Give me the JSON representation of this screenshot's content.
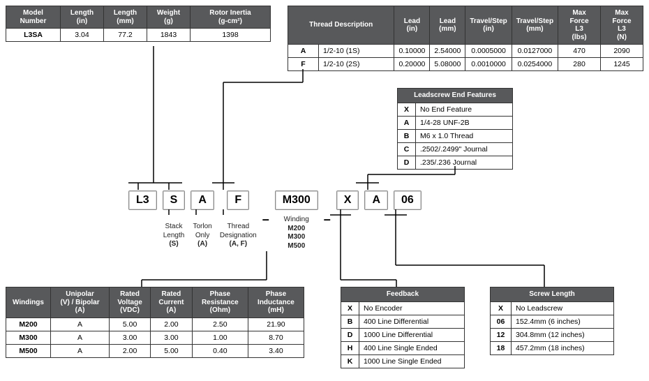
{
  "model_table": {
    "headers": [
      "Model\nNumber",
      "Length\n(in)",
      "Length\n(mm)",
      "Weight\n(g)",
      "Rotor Inertia\n(g-cm²)"
    ],
    "row": [
      "L3SA",
      "3.04",
      "77.2",
      "1843",
      "1398"
    ]
  },
  "thread_table": {
    "header_span": "Thread Description",
    "headers": [
      "Lead\n(in)",
      "Lead\n(mm)",
      "Travel/Step\n(in)",
      "Travel/Step\n(mm)",
      "Max Force\nL3\n(lbs)",
      "Max Force\nL3\n(N)"
    ],
    "rows": [
      {
        "key": "A",
        "desc": "1/2-10 (1S)",
        "v": [
          "0.10000",
          "2.54000",
          "0.0005000",
          "0.0127000",
          "470",
          "2090"
        ]
      },
      {
        "key": "F",
        "desc": "1/2-10 (2S)",
        "v": [
          "0.20000",
          "5.08000",
          "0.0010000",
          "0.0254000",
          "280",
          "1245"
        ]
      }
    ]
  },
  "leadscrew_end": {
    "title": "Leadscrew End Features",
    "rows": [
      [
        "X",
        "No End Feature"
      ],
      [
        "A",
        "1/4-28 UNF-2B"
      ],
      [
        "B",
        "M6 x 1.0 Thread"
      ],
      [
        "C",
        ".2502/.2499\" Journal"
      ],
      [
        "D",
        ".235/.236 Journal"
      ]
    ]
  },
  "part": {
    "segments": [
      "L3",
      "S",
      "A",
      "F",
      "M300",
      "X",
      "A",
      "06"
    ],
    "sub": [
      "",
      {
        "t": "Stack\nLength",
        "b": "(S)"
      },
      {
        "t": "Torlon\nOnly",
        "b": "(A)"
      },
      {
        "t": "Thread\nDesignation",
        "b": "(A, F)"
      },
      {
        "t": "Winding",
        "b": "M200\nM300\nM500"
      },
      "",
      "",
      ""
    ]
  },
  "windings_table": {
    "headers": [
      "Windings",
      "Unipolar\n(V) / Bipolar\n(A)",
      "Rated\nVoltage\n(VDC)",
      "Rated\nCurrent\n(A)",
      "Phase\nResistance\n(Ohm)",
      "Phase\nInductance\n(mH)"
    ],
    "rows": [
      [
        "M200",
        "A",
        "5.00",
        "2.00",
        "2.50",
        "21.90"
      ],
      [
        "M300",
        "A",
        "3.00",
        "3.00",
        "1.00",
        "8.70"
      ],
      [
        "M500",
        "A",
        "2.00",
        "5.00",
        "0.40",
        "3.40"
      ]
    ]
  },
  "feedback": {
    "title": "Feedback",
    "rows": [
      [
        "X",
        "No Encoder"
      ],
      [
        "B",
        "400 Line Differential"
      ],
      [
        "D",
        "1000 Line Differential"
      ],
      [
        "H",
        "400 Line Single Ended"
      ],
      [
        "K",
        "1000 Line Single Ended"
      ]
    ]
  },
  "screw_length": {
    "title": "Screw Length",
    "rows": [
      [
        "X",
        "No Leadscrew"
      ],
      [
        "06",
        "152.4mm (6 inches)"
      ],
      [
        "12",
        "304.8mm (12 inches)"
      ],
      [
        "18",
        "457.2mm (18 inches)"
      ]
    ]
  }
}
